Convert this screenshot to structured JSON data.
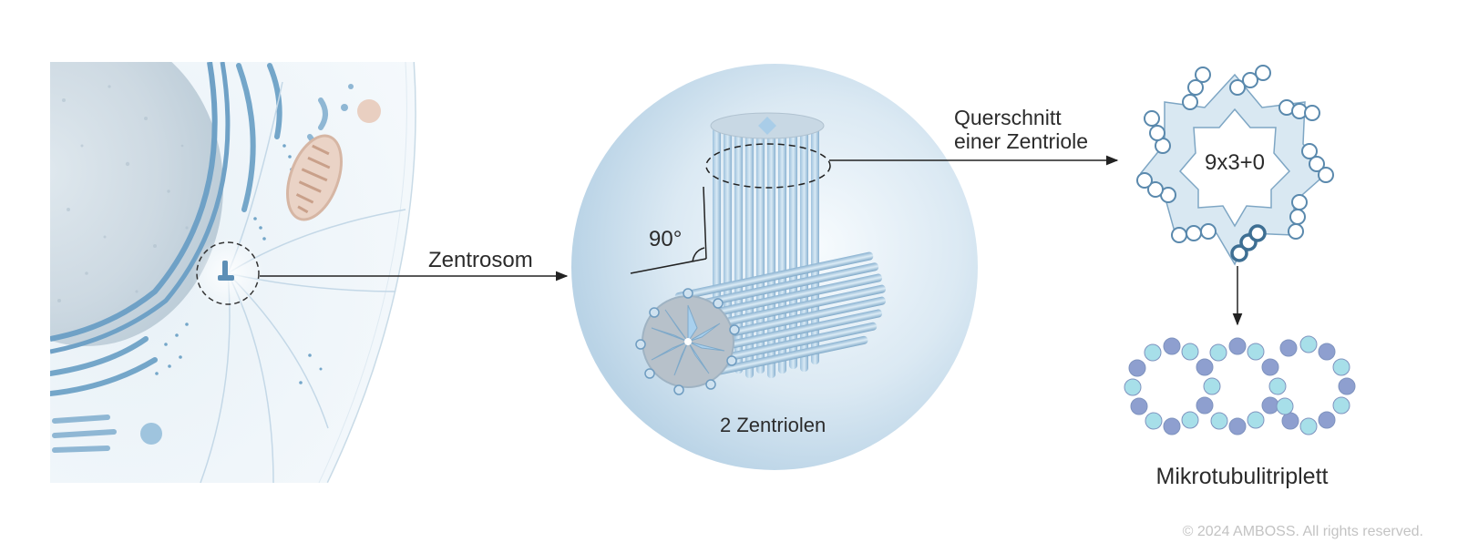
{
  "labels": {
    "zentrosom": "Zentrosom",
    "querschnitt_line1": "Querschnitt",
    "querschnitt_line2": "einer Zentriole",
    "angle": "90°",
    "zentriolen": "2 Zentriolen",
    "formula": "9x3+0",
    "mikrotubuli": "Mikrotubulitriplett"
  },
  "copyright": "© 2024 AMBOSS. All rights reserved.",
  "colors": {
    "accent_blue": "#6aa3c9",
    "dark_blue": "#3e6f93",
    "light_blue": "#cfe3f0",
    "tubulin_alpha": "#a7dfe9",
    "tubulin_beta": "#8e9fcf",
    "mitochondrion": "#e7cfc1"
  },
  "icons": [
    "cell-illustration",
    "mitochondrion-icon",
    "centrosome-icon",
    "centriole-pair-icon",
    "arrow-right-icon",
    "arrow-down-icon"
  ]
}
